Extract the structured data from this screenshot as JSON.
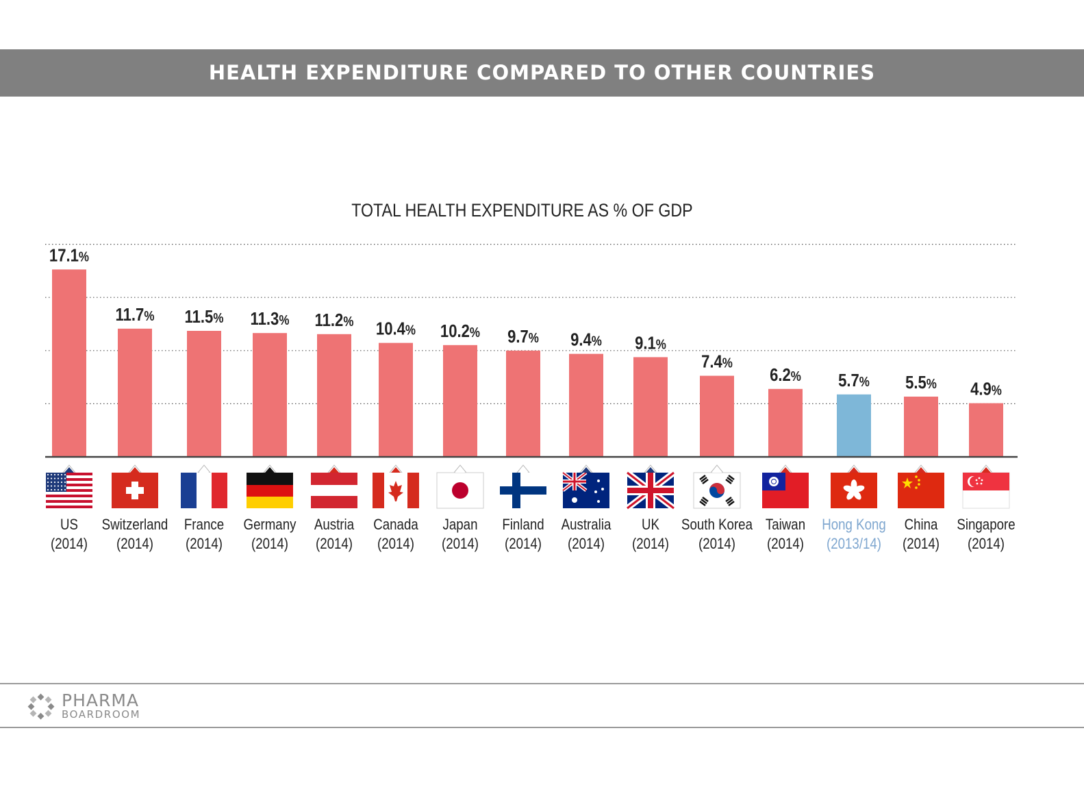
{
  "header": {
    "title": "HEALTH EXPENDITURE COMPARED TO OTHER COUNTRIES"
  },
  "colors": {
    "bar": "#ee7374",
    "highlight_bar": "#7eb7d8",
    "highlight_text": "#7ea6cf",
    "header_band": "#808080"
  },
  "chart_data": {
    "type": "bar",
    "title": "TOTAL HEALTH EXPENDITURE AS % OF GDP",
    "ylabel": "",
    "xlabel": "",
    "ylim": [
      0,
      20
    ],
    "grid": true,
    "highlight_index": 12,
    "categories": [
      {
        "name": "US",
        "year": "(2014)",
        "flag": "us-flag-icon"
      },
      {
        "name": "Switzerland",
        "year": "(2014)",
        "flag": "switzerland-flag-icon"
      },
      {
        "name": "France",
        "year": "(2014)",
        "flag": "france-flag-icon"
      },
      {
        "name": "Germany",
        "year": "(2014)",
        "flag": "germany-flag-icon"
      },
      {
        "name": "Austria",
        "year": "(2014)",
        "flag": "austria-flag-icon"
      },
      {
        "name": "Canada",
        "year": "(2014)",
        "flag": "canada-flag-icon"
      },
      {
        "name": "Japan",
        "year": "(2014)",
        "flag": "japan-flag-icon"
      },
      {
        "name": "Finland",
        "year": "(2014)",
        "flag": "finland-flag-icon"
      },
      {
        "name": "Australia",
        "year": "(2014)",
        "flag": "australia-flag-icon"
      },
      {
        "name": "UK",
        "year": "(2014)",
        "flag": "uk-flag-icon"
      },
      {
        "name": "South Korea",
        "year": "(2014)",
        "flag": "south-korea-flag-icon"
      },
      {
        "name": "Taiwan",
        "year": "(2014)",
        "flag": "taiwan-flag-icon"
      },
      {
        "name": "Hong Kong",
        "year": "(2013/14)",
        "flag": "hong-kong-flag-icon"
      },
      {
        "name": "China",
        "year": "(2014)",
        "flag": "china-flag-icon"
      },
      {
        "name": "Singapore",
        "year": "(2014)",
        "flag": "singapore-flag-icon"
      }
    ],
    "values": [
      17.1,
      11.7,
      11.5,
      11.3,
      11.2,
      10.4,
      10.2,
      9.7,
      9.4,
      9.1,
      7.4,
      6.2,
      5.7,
      5.5,
      4.9
    ],
    "value_labels": [
      "17.1",
      "11.7",
      "11.5",
      "11.3",
      "11.2",
      "10.4",
      "10.2",
      "9.7",
      "9.4",
      "9.1",
      "7.4",
      "6.2",
      "5.7",
      "5.5",
      "4.9"
    ],
    "value_unit": "%"
  },
  "footer": {
    "logo_name": "PHARMA",
    "logo_sub": "BOARDROOM",
    "logo_icon": "pharma-boardroom-logo-icon"
  }
}
